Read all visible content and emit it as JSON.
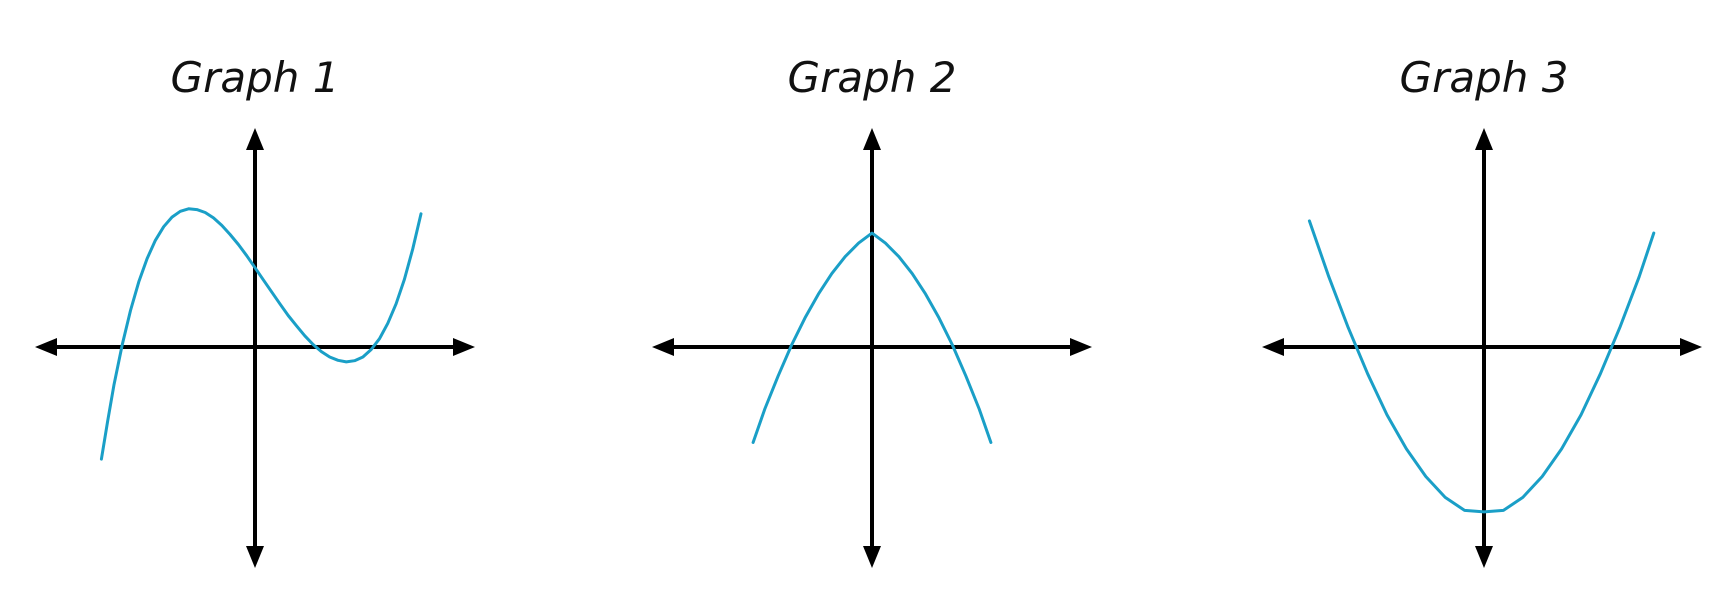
{
  "chart_data": [
    {
      "type": "line",
      "title": "Graph 1",
      "xlabel": "",
      "ylabel": "",
      "xlim": [
        -4.5,
        4.5
      ],
      "ylim": [
        -4.5,
        4.5
      ],
      "axes_arrows": true,
      "grid": false,
      "series": [
        {
          "color": "#1A9FC7",
          "x": [
            -3.7,
            -3.55,
            -3.4,
            -3.2,
            -3.0,
            -2.8,
            -2.6,
            -2.4,
            -2.2,
            -2.0,
            -1.8,
            -1.6,
            -1.4,
            -1.2,
            -1.0,
            -0.8,
            -0.6,
            -0.4,
            -0.2,
            0.0,
            0.2,
            0.4,
            0.6,
            0.8,
            1.0,
            1.2,
            1.4,
            1.6,
            1.8,
            2.0,
            2.2,
            2.4,
            2.6,
            2.8,
            3.0,
            3.2,
            3.4,
            3.6,
            3.8,
            4.0
          ],
          "y": [
            -2.7,
            -1.78,
            -0.92,
            0.05,
            0.88,
            1.57,
            2.13,
            2.57,
            2.9,
            3.13,
            3.27,
            3.33,
            3.31,
            3.24,
            3.11,
            2.93,
            2.71,
            2.47,
            2.2,
            1.91,
            1.62,
            1.33,
            1.04,
            0.76,
            0.51,
            0.27,
            0.06,
            -0.11,
            -0.24,
            -0.32,
            -0.36,
            -0.33,
            -0.24,
            -0.06,
            0.2,
            0.57,
            1.04,
            1.63,
            2.36,
            3.21
          ]
        }
      ]
    },
    {
      "type": "line",
      "title": "Graph 2",
      "xlabel": "",
      "ylabel": "",
      "xlim": [
        -4.5,
        4.5
      ],
      "ylim": [
        -4.5,
        4.5
      ],
      "axes_arrows": true,
      "grid": false,
      "series": [
        {
          "color": "#1A9FC7",
          "x": [
            -3.55,
            -3.2,
            -2.8,
            -2.4,
            -2.0,
            -1.6,
            -1.2,
            -0.8,
            -0.4,
            0.0,
            0.4,
            0.8,
            1.2,
            1.6,
            2.0,
            2.4,
            2.8,
            3.2,
            3.55
          ],
          "y": [
            -2.85,
            -1.85,
            -0.86,
            0.06,
            0.87,
            1.58,
            2.19,
            2.7,
            3.1,
            3.4,
            3.1,
            2.7,
            2.19,
            1.58,
            0.87,
            0.06,
            -0.86,
            -1.85,
            -2.85
          ]
        }
      ]
    },
    {
      "type": "line",
      "title": "Graph 3",
      "xlabel": "",
      "ylabel": "",
      "xlim": [
        -4.5,
        4.5
      ],
      "ylim": [
        -4.5,
        4.5
      ],
      "axes_arrows": true,
      "grid": false,
      "series": [
        {
          "color": "#1A9FC7",
          "x": [
            -3.6,
            -3.2,
            -2.8,
            -2.4,
            -2.0,
            -1.6,
            -1.2,
            -0.8,
            -0.4,
            0.0,
            0.4,
            0.8,
            1.2,
            1.6,
            2.0,
            2.4,
            2.8,
            3.2,
            3.5
          ],
          "y": [
            2.6,
            1.45,
            0.4,
            -0.55,
            -1.4,
            -2.1,
            -2.67,
            -3.1,
            -3.37,
            -3.4,
            -3.37,
            -3.1,
            -2.67,
            -2.1,
            -1.4,
            -0.55,
            0.4,
            1.45,
            2.35
          ]
        }
      ]
    }
  ]
}
